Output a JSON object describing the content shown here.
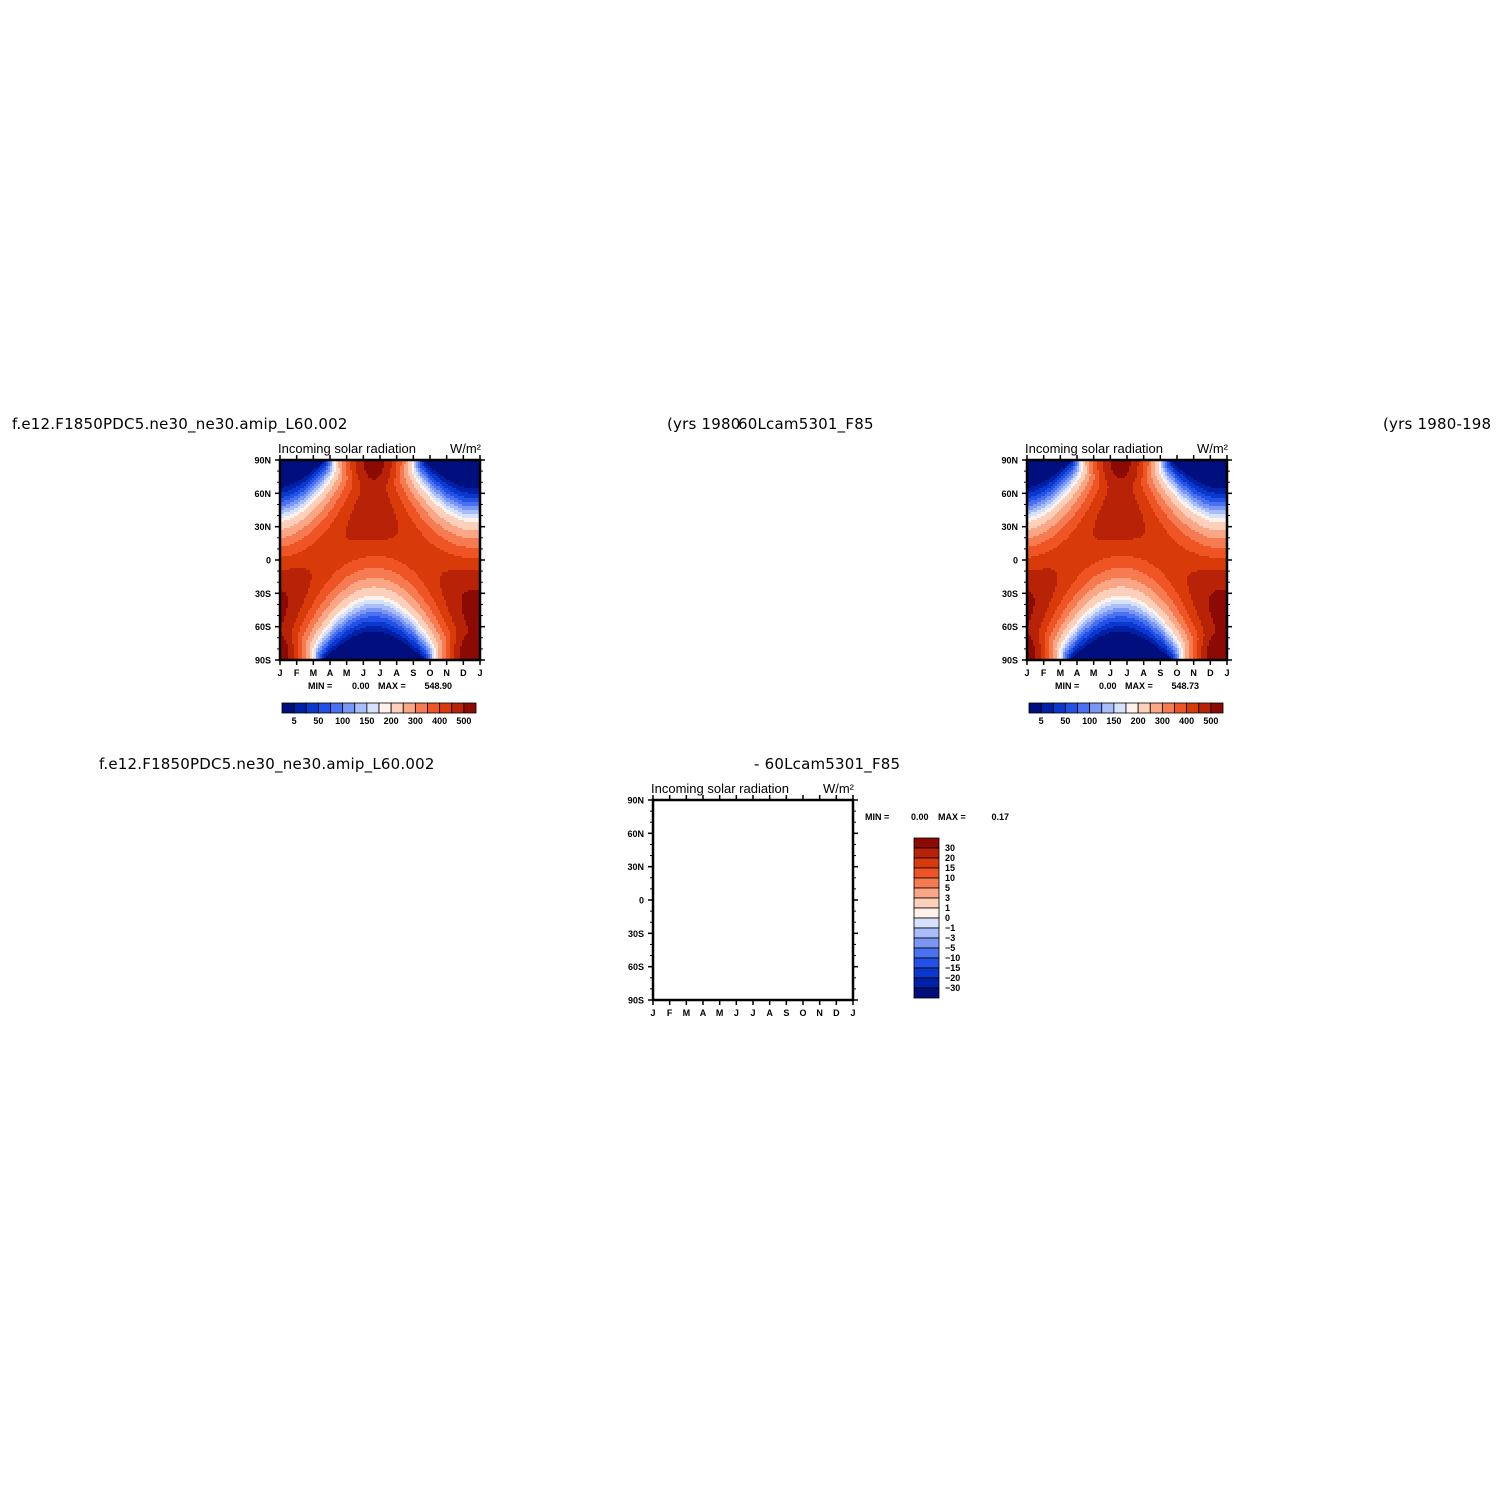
{
  "headers": {
    "panel1_case": "f.e12.F1850PDC5.ne30_ne30.amip_L60.002",
    "panel1_years": "(yrs 1980",
    "panel2_case": "60Lcam5301_F85",
    "panel2_years": "(yrs 1980-198",
    "diff_case": "f.e12.F1850PDC5.ne30_ne30.amip_L60.002",
    "diff_ref": "- 60Lcam5301_F85"
  },
  "chart_data": [
    {
      "type": "heatmap",
      "title": "Incoming solar radiation",
      "units": "W/m²",
      "x_ticks": [
        "J",
        "F",
        "M",
        "A",
        "M",
        "J",
        "J",
        "A",
        "S",
        "O",
        "N",
        "D",
        "J"
      ],
      "y_ticks": [
        "90N",
        "60N",
        "30N",
        "0",
        "30S",
        "60S",
        "90S"
      ],
      "min_label": "MIN =",
      "min_value": "0.00",
      "max_label": "MAX =",
      "max_value": "548.90",
      "contour_levels": [
        5,
        25,
        50,
        75,
        100,
        125,
        150,
        175,
        200,
        250,
        300,
        350,
        400,
        450,
        500
      ],
      "colorbar_labels": [
        "5",
        "50",
        "100",
        "150",
        "200",
        "300",
        "400",
        "500"
      ],
      "colors": [
        "#000e7e",
        "#0020a8",
        "#0a37cc",
        "#2251e6",
        "#4a71f0",
        "#7a97f5",
        "#a8bdf9",
        "#d6e2fc",
        "#fff2ea",
        "#fdd0bc",
        "#fba786",
        "#f77b51",
        "#ef5424",
        "#d83a0a",
        "#b82307",
        "#8b0a04"
      ]
    },
    {
      "type": "heatmap",
      "title": "Incoming solar radiation",
      "units": "W/m²",
      "x_ticks": [
        "J",
        "F",
        "M",
        "A",
        "M",
        "J",
        "J",
        "A",
        "S",
        "O",
        "N",
        "D",
        "J"
      ],
      "y_ticks": [
        "90N",
        "60N",
        "30N",
        "0",
        "30S",
        "60S",
        "90S"
      ],
      "min_label": "MIN =",
      "min_value": "0.00",
      "max_label": "MAX =",
      "max_value": "548.73",
      "contour_levels": [
        5,
        25,
        50,
        75,
        100,
        125,
        150,
        175,
        200,
        250,
        300,
        350,
        400,
        450,
        500
      ],
      "colorbar_labels": [
        "5",
        "50",
        "100",
        "150",
        "200",
        "300",
        "400",
        "500"
      ],
      "colors": [
        "#000e7e",
        "#0020a8",
        "#0a37cc",
        "#2251e6",
        "#4a71f0",
        "#7a97f5",
        "#a8bdf9",
        "#d6e2fc",
        "#fff2ea",
        "#fdd0bc",
        "#fba786",
        "#f77b51",
        "#ef5424",
        "#d83a0a",
        "#b82307",
        "#8b0a04"
      ]
    },
    {
      "type": "heatmap",
      "title": "Incoming solar radiation",
      "units": "W/m²",
      "x_ticks": [
        "J",
        "F",
        "M",
        "A",
        "M",
        "J",
        "J",
        "A",
        "S",
        "O",
        "N",
        "D",
        "J"
      ],
      "y_ticks": [
        "90N",
        "60N",
        "30N",
        "0",
        "30S",
        "60S",
        "90S"
      ],
      "min_label": "MIN =",
      "min_value": "0.00",
      "max_label": "MAX =",
      "max_value": "0.17",
      "colorbar_labels": [
        "30",
        "20",
        "15",
        "10",
        "5",
        "3",
        "1",
        "0",
        "-1",
        "-3",
        "-5",
        "-10",
        "-15",
        "-20",
        "-30"
      ],
      "colors": [
        "#8b0a04",
        "#b82307",
        "#d83a0a",
        "#ef5424",
        "#f77b51",
        "#fba786",
        "#fdd0bc",
        "#fff2ea",
        "#d6e2fc",
        "#a8bdf9",
        "#7a97f5",
        "#4a71f0",
        "#2251e6",
        "#0a37cc",
        "#0020a8",
        "#000e7e"
      ]
    }
  ]
}
